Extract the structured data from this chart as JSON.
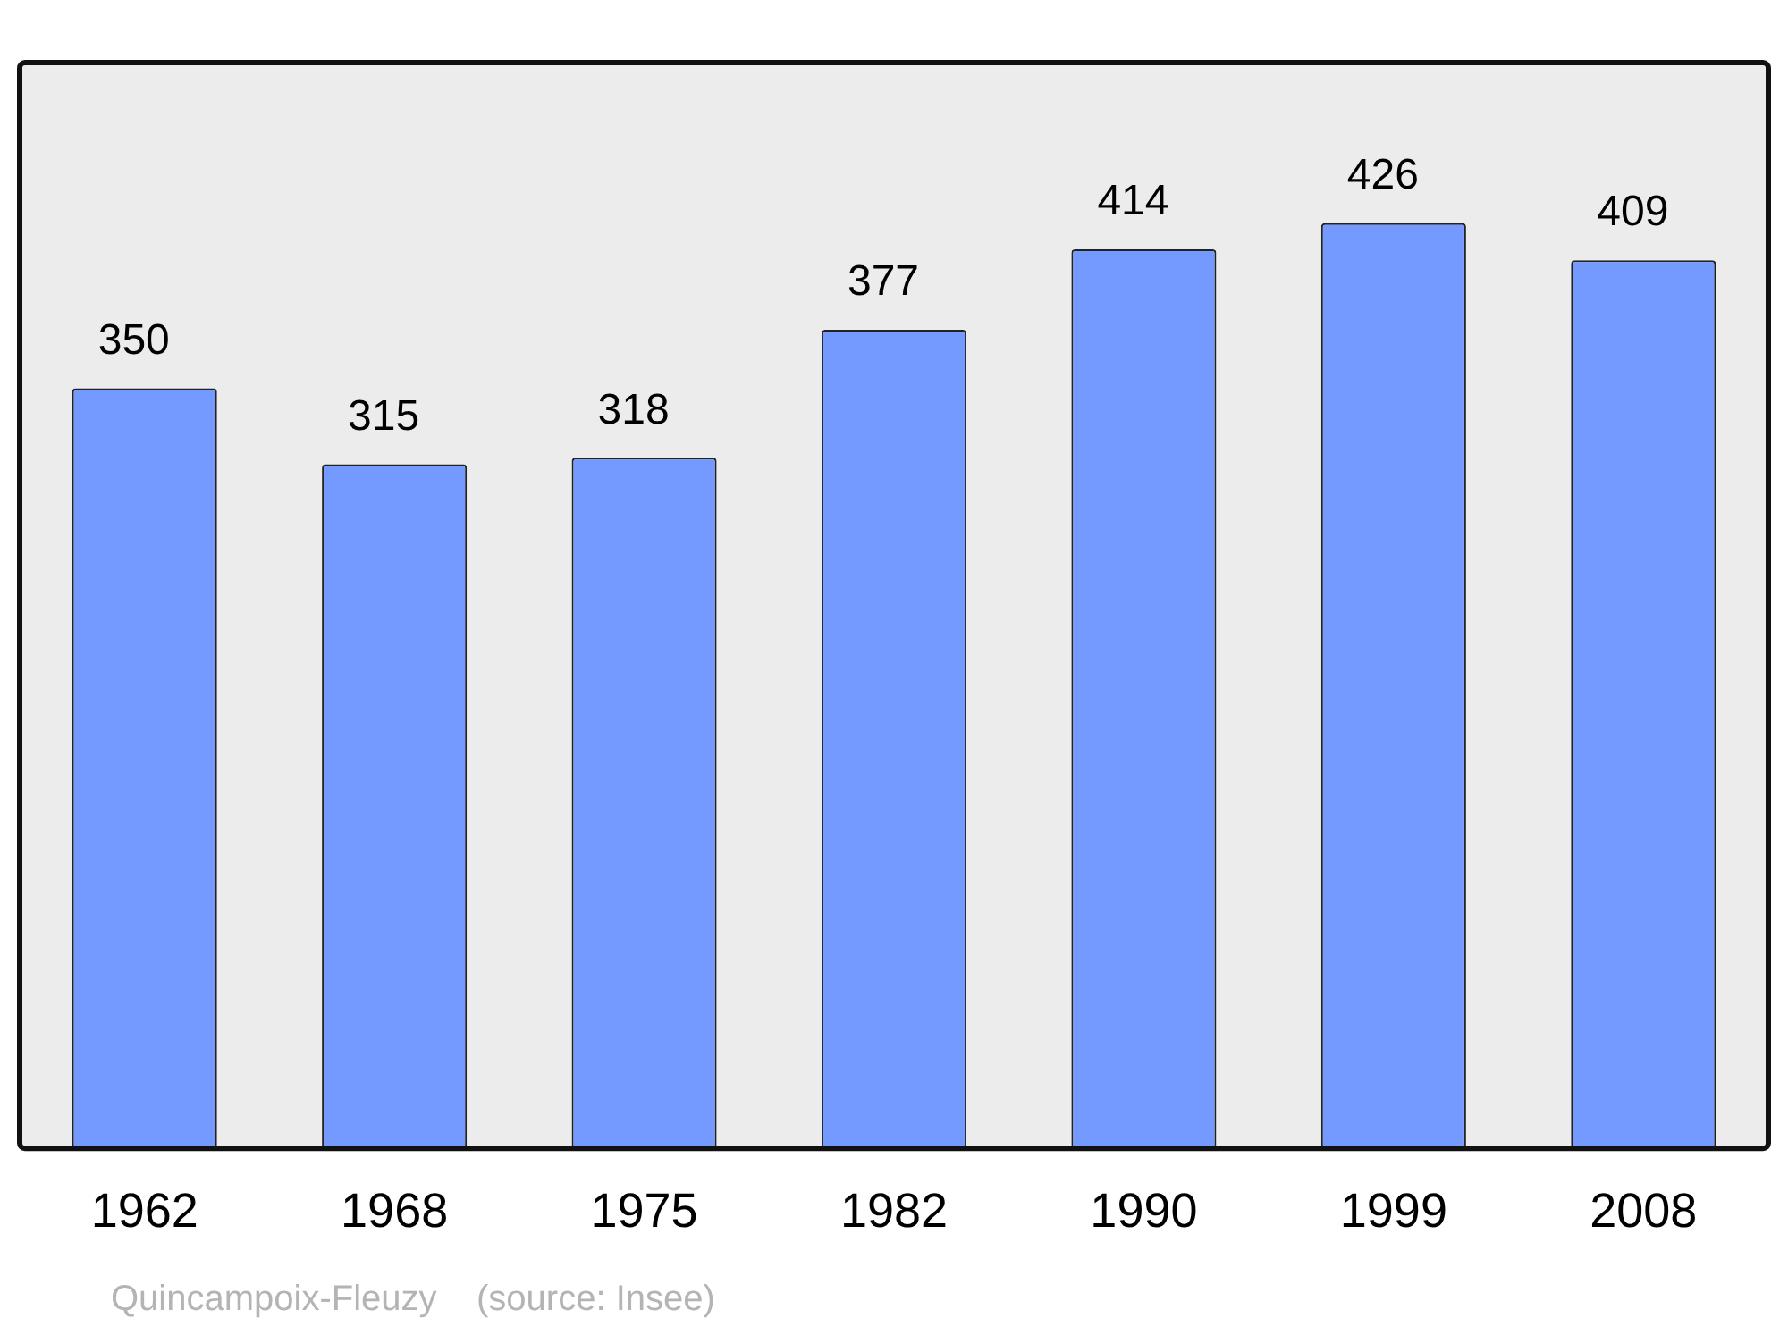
{
  "chart_data": {
    "type": "bar",
    "categories": [
      "1962",
      "1968",
      "1975",
      "1982",
      "1990",
      "1999",
      "2008"
    ],
    "values": [
      350,
      315,
      318,
      377,
      414,
      426,
      409
    ],
    "color": "#7499ff",
    "data_labels": true,
    "grid": false,
    "legend": false,
    "tick_labels": "x",
    "annotations": [
      "Quincampoix-Fleuzy    (source: Insee)"
    ]
  }
}
